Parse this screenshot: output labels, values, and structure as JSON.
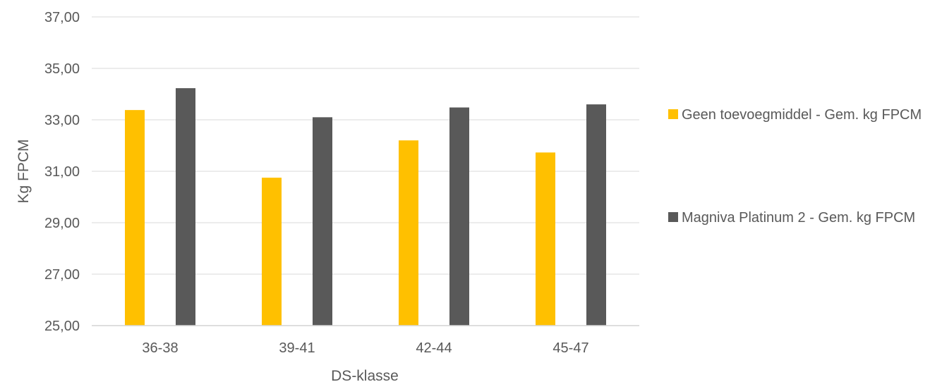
{
  "chart_data": {
    "type": "bar",
    "title": "",
    "xlabel": "DS-klasse",
    "ylabel": "Kg FPCM",
    "ylim": [
      25,
      37
    ],
    "yticks": [
      25,
      27,
      29,
      31,
      33,
      35,
      37
    ],
    "ytick_labels": [
      "25,00",
      "27,00",
      "29,00",
      "31,00",
      "33,00",
      "35,00",
      "37,00"
    ],
    "categories": [
      "36-38",
      "39-41",
      "42-44",
      "45-47"
    ],
    "series": [
      {
        "name": "Geen toevoegmiddel - Gem. kg FPCM",
        "color": "#FFC000",
        "values": [
          33.38,
          30.75,
          32.2,
          31.73
        ]
      },
      {
        "name": "Magniva Platinum 2 - Gem. kg FPCM",
        "color": "#595959",
        "values": [
          34.23,
          33.1,
          33.48,
          33.6
        ]
      }
    ],
    "grid": true,
    "gridline_color": "#D9D9D9",
    "legend_position": "right"
  }
}
